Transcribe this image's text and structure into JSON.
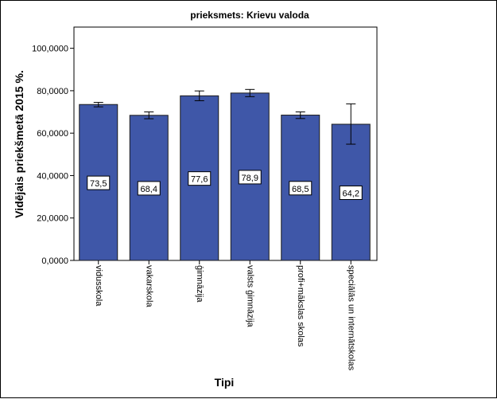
{
  "chart_data": {
    "type": "bar",
    "title": "prieksmets: Krievu valoda",
    "xlabel": "Tipi",
    "ylabel": "Vidējais priekšmetā 2015 %.",
    "ylim": [
      0,
      110000
    ],
    "yticks": [
      0,
      20000,
      40000,
      60000,
      80000,
      100000
    ],
    "ytick_labels": [
      "0,0000",
      "20,0000",
      "40,0000",
      "60,0000",
      "80,0000",
      "100,0000"
    ],
    "grid": false,
    "colors": {
      "bar": "#3f57a8",
      "bar_edge": "#1b1b1b"
    },
    "categories": [
      "vidusskola",
      "vakarskola",
      "ģimnāzija",
      "valsts ģimnāzija",
      "profi+mākslas skolas",
      "speciālās un internātskolas"
    ],
    "values": [
      73500,
      68400,
      77600,
      78900,
      68500,
      64200
    ],
    "value_labels": [
      "73,5",
      "68,4",
      "77,6",
      "78,9",
      "68,5",
      "64,2"
    ],
    "error_low": [
      72400,
      66800,
      75300,
      77200,
      66900,
      54800
    ],
    "error_high": [
      74500,
      70000,
      79900,
      80600,
      70000,
      73800
    ]
  }
}
